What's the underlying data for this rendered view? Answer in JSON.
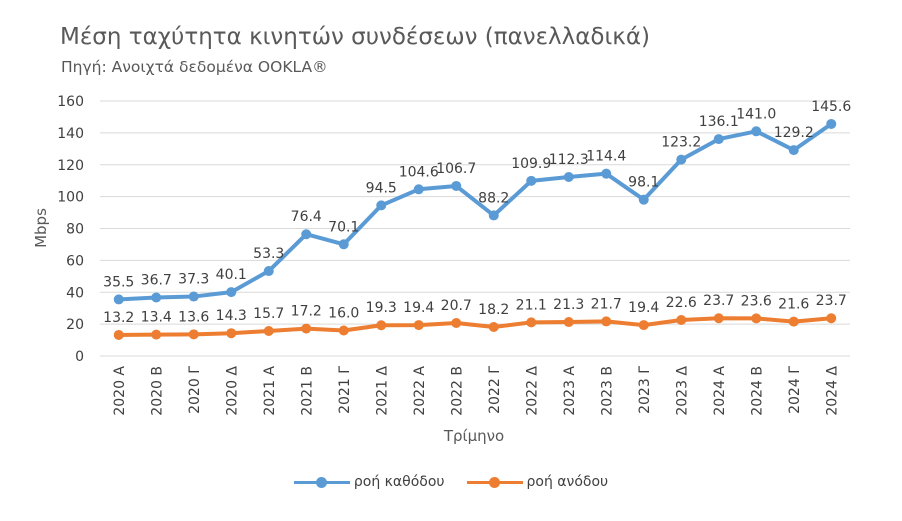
{
  "chart_data": {
    "type": "line",
    "title": "Μέση ταχύτητα κινητών συνδέσεων (πανελλαδικά)",
    "subtitle": "Πηγή: Ανοιχτά δεδομένα OOKLA®",
    "xlabel": "Τρίμηνο",
    "ylabel": "Mbps",
    "ylim": [
      0,
      160
    ],
    "yticks": [
      0,
      20,
      40,
      60,
      80,
      100,
      120,
      140,
      160
    ],
    "grid": true,
    "legend_position": "bottom",
    "categories": [
      "2020 A",
      "2020 B",
      "2020 Γ",
      "2020 Δ",
      "2021 A",
      "2021 B",
      "2021 Γ",
      "2021 Δ",
      "2022 A",
      "2022 B",
      "2022 Γ",
      "2022 Δ",
      "2023 A",
      "2023 B",
      "2023 Γ",
      "2023 Δ",
      "2024 A",
      "2024 B",
      "2024 Γ",
      "2024 Δ"
    ],
    "series": [
      {
        "name": "ροή καθόδου",
        "color": "#5b9bd5",
        "values": [
          35.5,
          36.7,
          37.3,
          40.1,
          53.3,
          76.4,
          70.1,
          94.5,
          104.6,
          106.7,
          88.2,
          109.9,
          112.3,
          114.4,
          98.1,
          123.2,
          136.1,
          141.0,
          129.2,
          145.6
        ],
        "labels": [
          "35.5",
          "36.7",
          "37.3",
          "40.1",
          "53.3",
          "76.4",
          "70.1",
          "94.5",
          "104.6",
          "106.7",
          "88.2",
          "109.9",
          "112.3",
          "114.4",
          "98.1",
          "123.2",
          "136.1",
          "141.0",
          "129.2",
          "145.6"
        ]
      },
      {
        "name": "ροή ανόδου",
        "color": "#ed7d31",
        "values": [
          13.2,
          13.4,
          13.6,
          14.3,
          15.7,
          17.2,
          16.0,
          19.3,
          19.4,
          20.7,
          18.2,
          21.1,
          21.3,
          21.7,
          19.4,
          22.6,
          23.7,
          23.6,
          21.6,
          23.7
        ],
        "labels": [
          "13.2",
          "13.4",
          "13.6",
          "14.3",
          "15.7",
          "17.2",
          "16.0",
          "19.3",
          "19.4",
          "20.7",
          "18.2",
          "21.1",
          "21.3",
          "21.7",
          "19.4",
          "22.6",
          "23.7",
          "23.6",
          "21.6",
          "23.7"
        ]
      }
    ]
  }
}
